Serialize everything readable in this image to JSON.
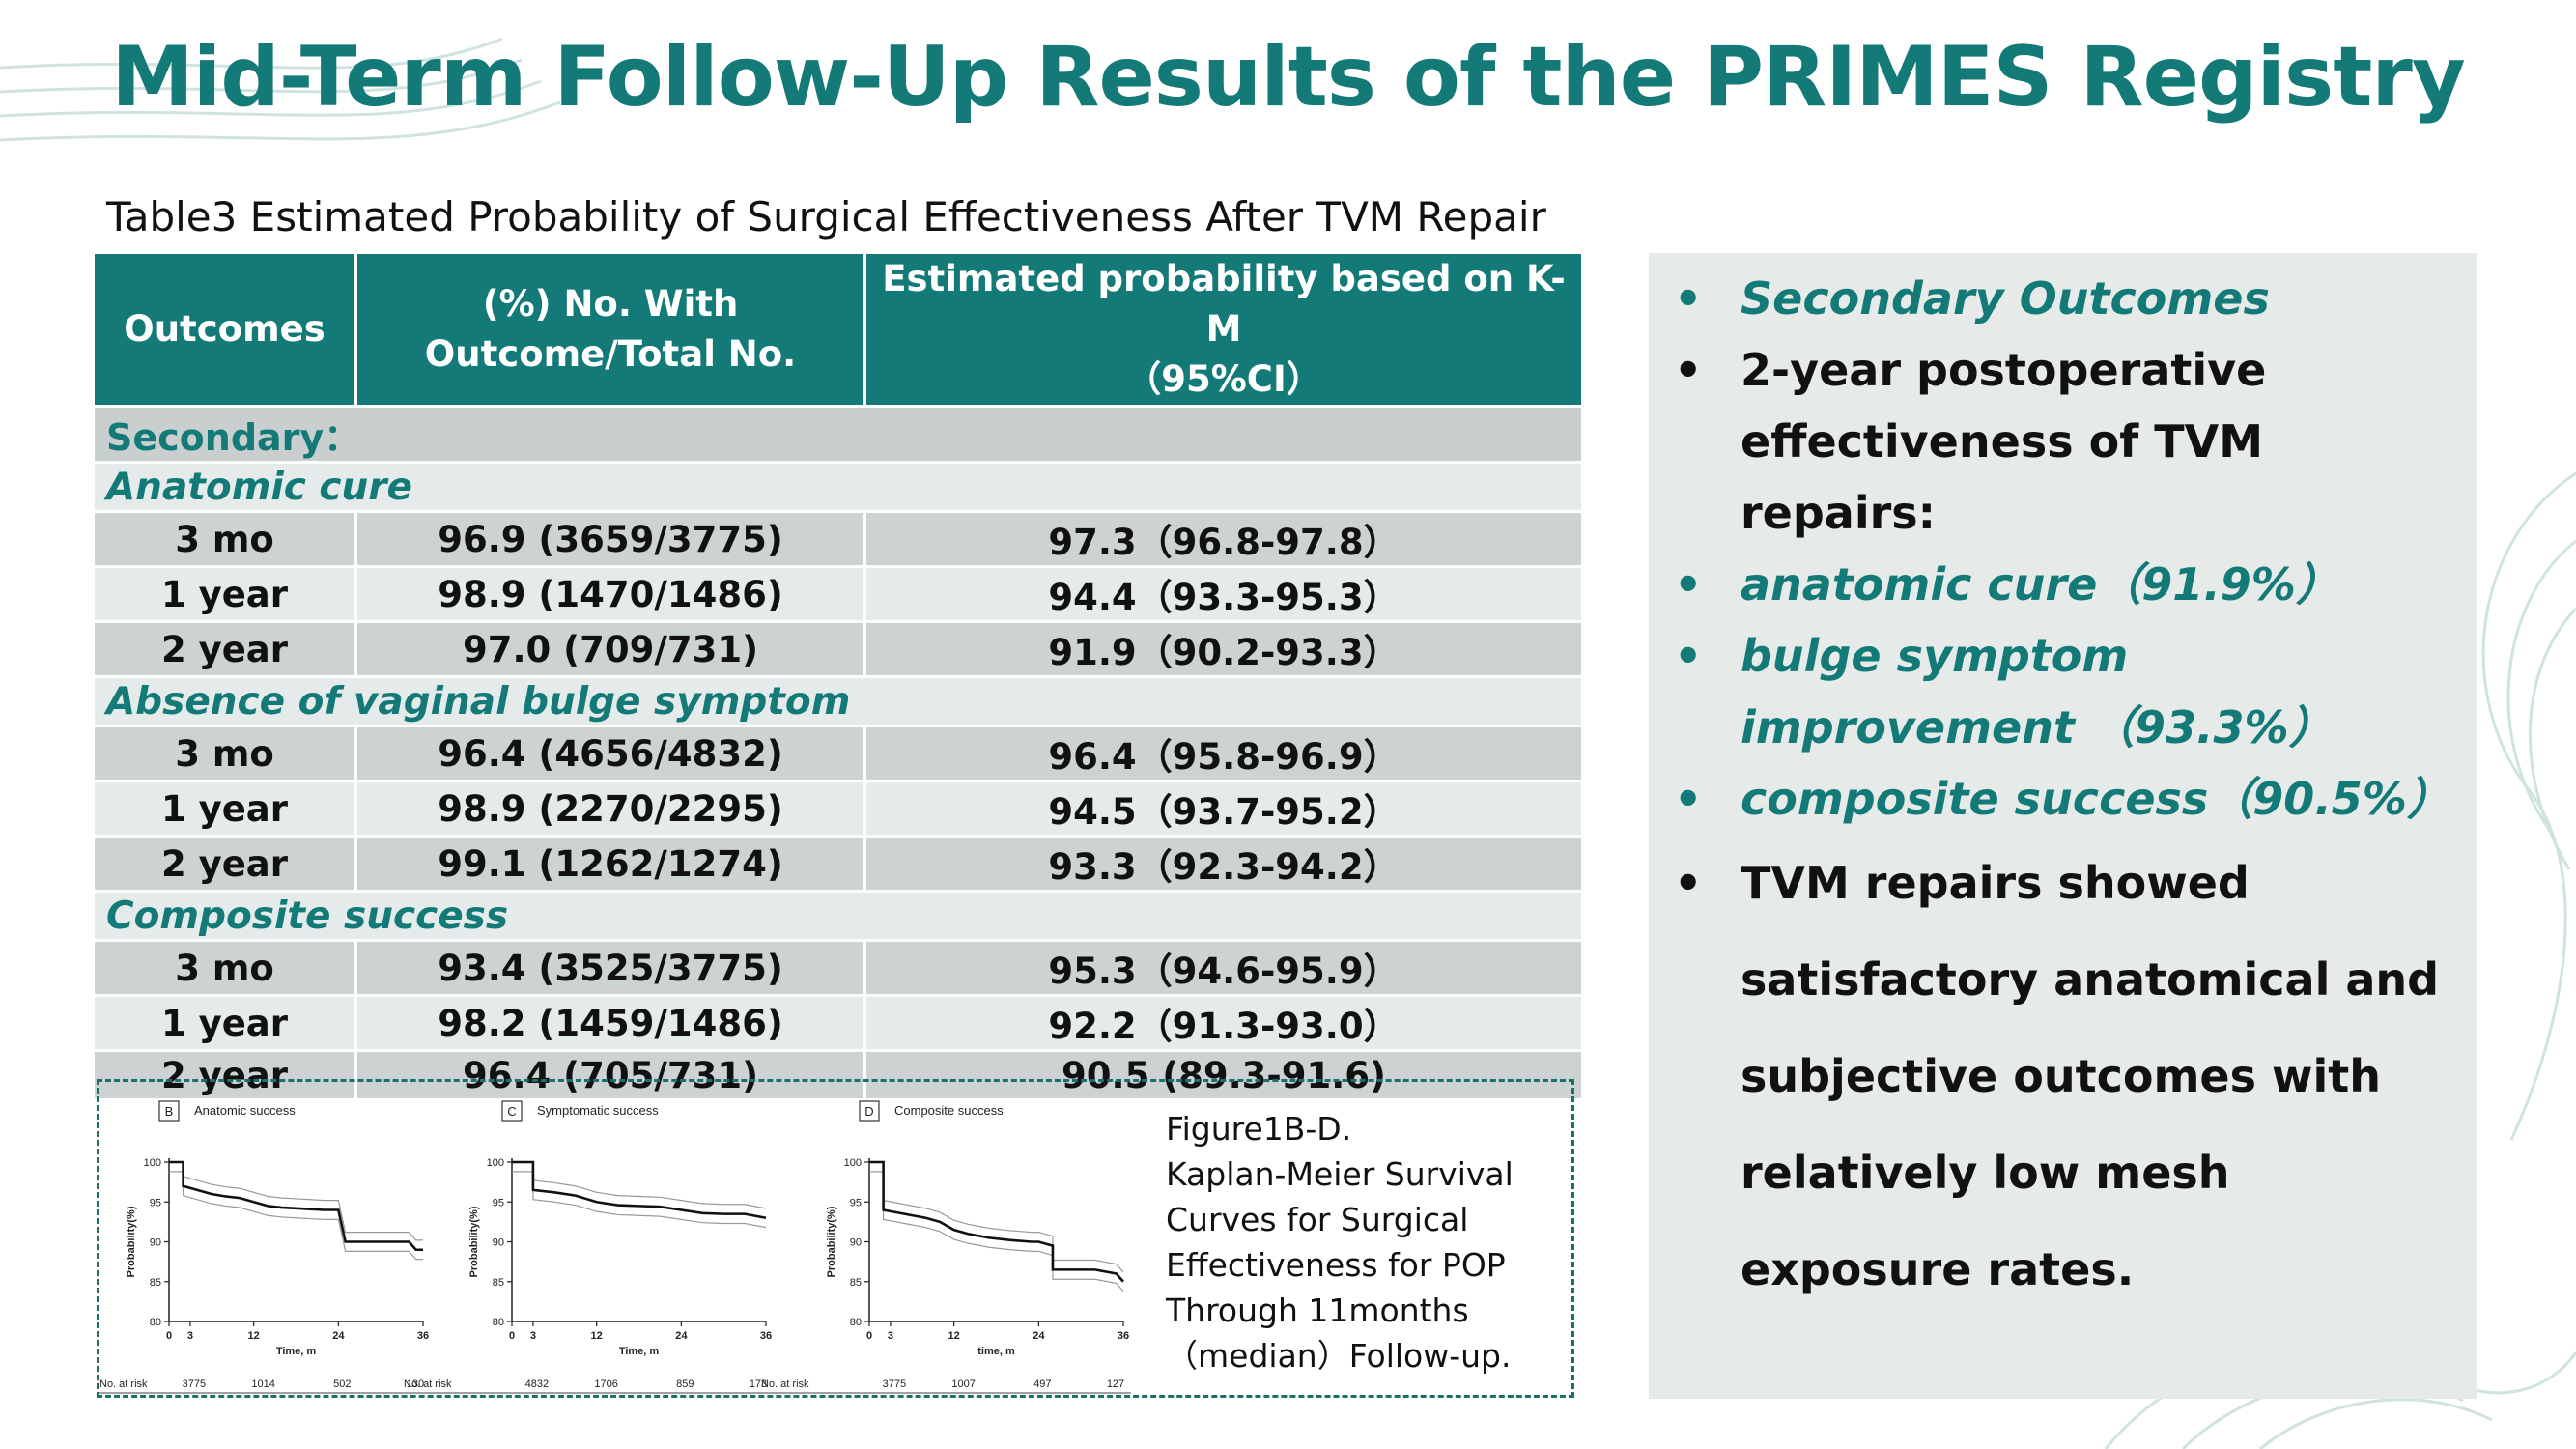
{
  "title": "Mid-Term Follow-Up Results of the PRIMES Registry",
  "table": {
    "caption": "Table3 Estimated Probability of  Surgical Effectiveness After TVM  Repair",
    "headers": [
      "Outcomes",
      "(%) No. With\nOutcome/Total No.",
      "Estimated probability based on K-M\n（95%CI）"
    ],
    "section": "Secondary：",
    "groups": [
      {
        "name": "Anatomic cure",
        "rows": [
          [
            "3 mo",
            "96.9 (3659/3775)",
            "97.3（96.8-97.8）"
          ],
          [
            "1 year",
            "98.9 (1470/1486)",
            "94.4（93.3-95.3）"
          ],
          [
            "2 year",
            "97.0 (709/731)",
            "91.9（90.2-93.3）"
          ]
        ]
      },
      {
        "name": "Absence of vaginal bulge symptom",
        "rows": [
          [
            "3 mo",
            "96.4 (4656/4832)",
            "96.4（95.8-96.9）"
          ],
          [
            "1 year",
            "98.9 (2270/2295)",
            "94.5（93.7-95.2）"
          ],
          [
            "2 year",
            "99.1 (1262/1274)",
            "93.3（92.3-94.2）"
          ]
        ]
      },
      {
        "name": "Composite success",
        "rows": [
          [
            "3 mo",
            "93.4 (3525/3775)",
            "95.3（94.6-95.9）"
          ],
          [
            "1 year",
            "98.2 (1459/1486)",
            "92.2（91.3-93.0）"
          ],
          [
            "2 year",
            "96.4 (705/731)",
            "90.5  (89.3-91.6)"
          ]
        ]
      }
    ]
  },
  "figure_note": [
    "Figure1B-D.",
    "Kaplan-Meier Survival",
    "Curves for  Surgical",
    "Effectiveness for POP",
    "Through 11months",
    "（median）Follow-up."
  ],
  "bullets": [
    {
      "text": "Secondary Outcomes",
      "style": "teal"
    },
    {
      "text": "2-year  postoperative effectiveness of TVM repairs:",
      "style": "black"
    },
    {
      "text": " anatomic cure（91.9%）",
      "style": "teal"
    },
    {
      "text": "bulge symptom improvement （93.3%）",
      "style": "teal"
    },
    {
      "text": "composite success（90.5%）",
      "style": "teal"
    },
    {
      "text": "TVM repairs showed satisfactory anatomical and subjective outcomes with relatively low mesh exposure rates.",
      "style": "black-tall"
    }
  ],
  "bullet_glyph": "•",
  "colors": {
    "teal": "#137a77",
    "header_bg": "#137a77",
    "row_dark": "#cdd3d2",
    "row_light": "#e5ebea",
    "side_bg": "#e6ebea"
  },
  "chart_data": [
    {
      "type": "line",
      "panel": "B",
      "title": "Anatomic success",
      "xlabel": "Time, m",
      "ylabel": "Probability(%)",
      "xlim": [
        0,
        36
      ],
      "ylim": [
        80,
        100
      ],
      "xticks": [
        "0",
        "3",
        "12",
        "24",
        "36"
      ],
      "yticks": [
        "80",
        "85",
        "90",
        "95",
        "100"
      ],
      "risk_label": "No. at risk",
      "at_risk": [
        "3775",
        "1014",
        "502",
        "130"
      ],
      "series": [
        {
          "x": [
            0,
            2,
            2,
            4,
            6,
            8,
            10,
            12,
            14,
            16,
            18,
            20,
            22,
            24,
            25,
            26,
            28,
            30,
            32,
            34,
            35,
            36
          ],
          "y": [
            100,
            100,
            97,
            96.5,
            96,
            95.7,
            95.5,
            95,
            94.5,
            94.3,
            94.2,
            94.1,
            94.0,
            94.0,
            90,
            90,
            90,
            90,
            90,
            90,
            89,
            89
          ]
        }
      ]
    },
    {
      "type": "line",
      "panel": "C",
      "title": "Symptomatic success",
      "xlabel": "Time, m",
      "ylabel": "Probability(%)",
      "xlim": [
        0,
        36
      ],
      "ylim": [
        80,
        100
      ],
      "xticks": [
        "0",
        "3",
        "12",
        "24",
        "36"
      ],
      "yticks": [
        "80",
        "85",
        "90",
        "95",
        "100"
      ],
      "risk_label": "No. at risk",
      "at_risk": [
        "4832",
        "1706",
        "859",
        "173"
      ],
      "series": [
        {
          "x": [
            0,
            3,
            3,
            6,
            9,
            12,
            15,
            18,
            21,
            24,
            27,
            30,
            33,
            36
          ],
          "y": [
            100,
            100,
            96.5,
            96.2,
            95.8,
            95,
            94.6,
            94.5,
            94.4,
            94,
            93.6,
            93.5,
            93.5,
            93
          ]
        }
      ]
    },
    {
      "type": "line",
      "panel": "D",
      "title": "Composite success",
      "xlabel": "time, m",
      "ylabel": "Probability(%)",
      "xlim": [
        0,
        36
      ],
      "ylim": [
        80,
        100
      ],
      "xticks": [
        "0",
        "3",
        "12",
        "24",
        "36"
      ],
      "yticks": [
        "80",
        "85",
        "90",
        "95",
        "100"
      ],
      "risk_label": "No. at risk",
      "at_risk": [
        "3775",
        "1007",
        "497",
        "127"
      ],
      "series": [
        {
          "x": [
            0,
            2,
            2,
            5,
            8,
            10,
            12,
            14,
            17,
            20,
            23,
            24,
            26,
            26,
            29,
            32,
            35,
            36
          ],
          "y": [
            100,
            100,
            94,
            93.5,
            93,
            92.5,
            91.5,
            91,
            90.5,
            90.2,
            90,
            90,
            89.5,
            86.5,
            86.5,
            86.5,
            86,
            85
          ]
        }
      ]
    }
  ]
}
